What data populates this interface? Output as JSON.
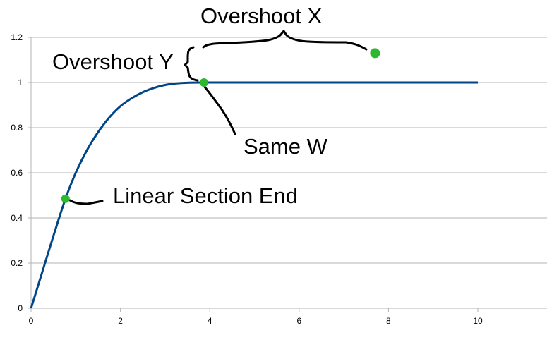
{
  "chart_data": {
    "type": "line",
    "title": "",
    "xlabel": "",
    "ylabel": "",
    "xlim": [
      0,
      11.6
    ],
    "ylim": [
      0,
      1.2
    ],
    "x_ticks": [
      "0",
      "2",
      "4",
      "6",
      "8",
      "10"
    ],
    "y_ticks": [
      "0",
      "0.2",
      "0.4",
      "0.6",
      "0.8",
      "1",
      "1.2"
    ],
    "grid": "horizontal",
    "legend": "none",
    "series": [
      {
        "color": "#004586",
        "points": [
          [
            0,
            0
          ],
          [
            0.25,
            0.16
          ],
          [
            0.5,
            0.32
          ],
          [
            0.77,
            0.485
          ],
          [
            1.0,
            0.6
          ],
          [
            1.25,
            0.7
          ],
          [
            1.5,
            0.78
          ],
          [
            1.75,
            0.845
          ],
          [
            2.0,
            0.895
          ],
          [
            2.25,
            0.93
          ],
          [
            2.5,
            0.957
          ],
          [
            2.75,
            0.976
          ],
          [
            3.0,
            0.989
          ],
          [
            3.25,
            0.996
          ],
          [
            3.5,
            0.999
          ],
          [
            3.85,
            1.0
          ],
          [
            5,
            1.0
          ],
          [
            6,
            1.0
          ],
          [
            7,
            1.0
          ],
          [
            8,
            1.0
          ],
          [
            9,
            1.0
          ],
          [
            10,
            1.0
          ]
        ]
      }
    ],
    "highlight_points": [
      {
        "name": "linear-section-end",
        "x": 0.77,
        "y": 0.485,
        "color": "#2db82d"
      },
      {
        "name": "same-w",
        "x": 3.87,
        "y": 1.0,
        "color": "#2db82d"
      },
      {
        "name": "overshoot",
        "x": 7.7,
        "y": 1.13,
        "color": "#2db82d"
      }
    ],
    "annotations": {
      "overshoot_x": "Overshoot X",
      "overshoot_y": "Overshoot Y",
      "same_w": "Same W",
      "linear_section_end": "Linear Section End"
    }
  }
}
